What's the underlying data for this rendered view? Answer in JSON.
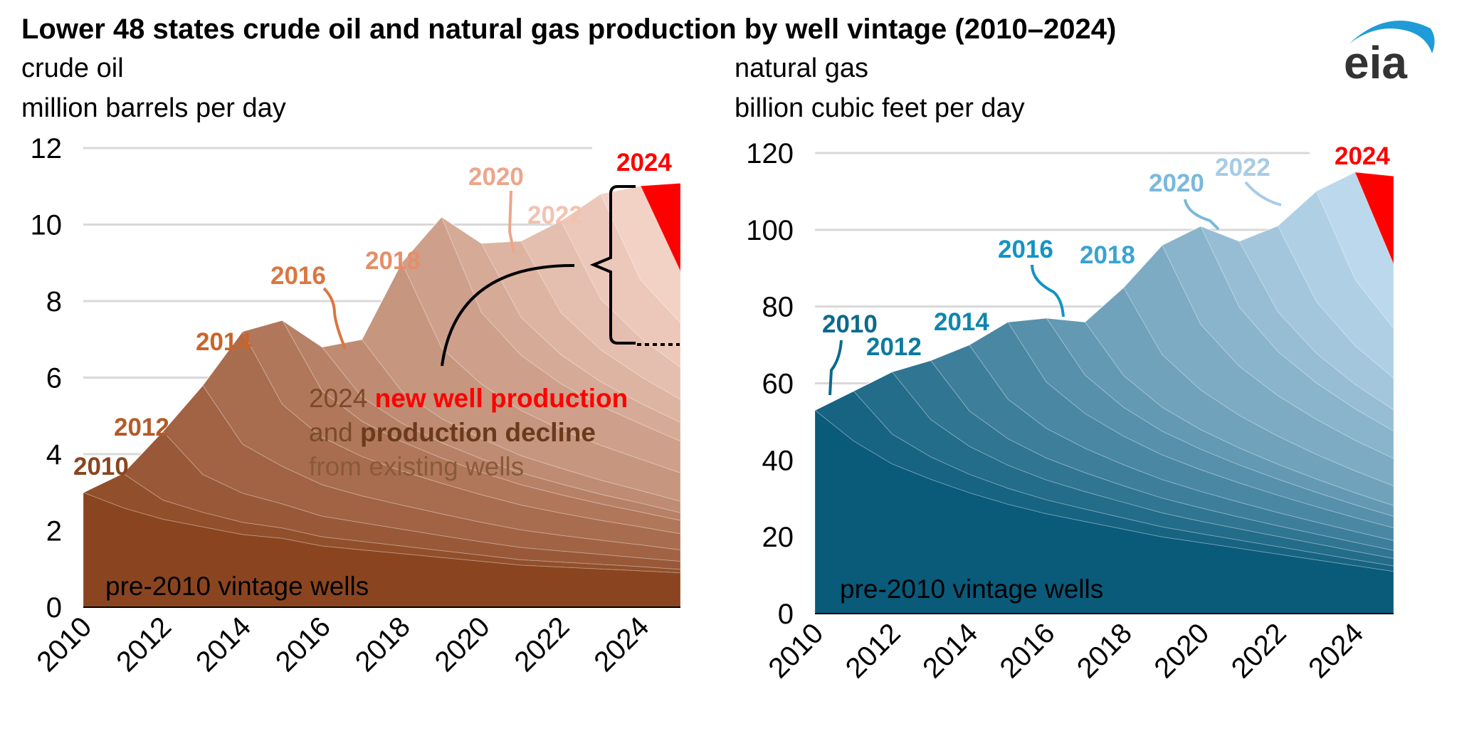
{
  "title": "Lower 48 states crude oil and natural gas production by well vintage (2010–2024)",
  "logo": "eia",
  "annotation": {
    "line1_a": "2024 ",
    "line1_b": "new well production",
    "line2_a": "and ",
    "line2_b": "production decline",
    "line3": "from existing wells"
  },
  "chart_data": [
    {
      "type": "area",
      "stacked": true,
      "title": "crude oil",
      "ylabel": "million barrels per day",
      "ylim": [
        0,
        12
      ],
      "yticks": [
        "0",
        "2",
        "4",
        "6",
        "8",
        "10",
        "12"
      ],
      "xticks": [
        "2010",
        "2012",
        "2014",
        "2016",
        "2018",
        "2020",
        "2022",
        "2024"
      ],
      "xlim": [
        2010,
        2025
      ],
      "grid": true,
      "x": [
        2010,
        2011,
        2012,
        2013,
        2014,
        2015,
        2016,
        2017,
        2018,
        2019,
        2020,
        2021,
        2022,
        2023,
        2024,
        2025
      ],
      "base_label": "pre-2010 vintage wells",
      "color_dark": "#8a4520",
      "color_light": "#f3d2c6",
      "color_2024": "#ff0000",
      "series": [
        {
          "name": "pre-2010 vintage wells",
          "values": [
            3.0,
            2.6,
            2.3,
            2.1,
            1.9,
            1.8,
            1.6,
            1.5,
            1.4,
            1.3,
            1.2,
            1.1,
            1.05,
            1.0,
            0.95,
            0.9
          ]
        },
        {
          "name": "2010",
          "values": [
            0,
            0.9,
            0.5,
            0.38,
            0.32,
            0.27,
            0.24,
            0.22,
            0.2,
            0.18,
            0.16,
            0.14,
            0.13,
            0.12,
            0.11,
            0.09
          ]
        },
        {
          "name": "",
          "values": [
            0,
            0,
            1.8,
            0.99,
            0.76,
            0.63,
            0.54,
            0.49,
            0.44,
            0.39,
            0.35,
            0.32,
            0.29,
            0.26,
            0.23,
            0.21
          ]
        },
        {
          "name": "2012",
          "values": [
            0,
            0,
            0,
            2.33,
            1.28,
            0.98,
            0.82,
            0.7,
            0.63,
            0.57,
            0.51,
            0.46,
            0.41,
            0.37,
            0.34,
            0.3
          ]
        },
        {
          "name": "",
          "values": [
            0,
            0,
            0,
            0,
            2.95,
            1.62,
            1.24,
            1.03,
            0.89,
            0.8,
            0.72,
            0.65,
            0.58,
            0.52,
            0.47,
            0.42
          ]
        },
        {
          "name": "2014",
          "values": [
            0,
            0,
            0,
            0,
            0,
            2.2,
            1.21,
            0.92,
            0.77,
            0.66,
            0.59,
            0.53,
            0.48,
            0.43,
            0.39,
            0.35
          ]
        },
        {
          "name": "",
          "values": [
            0,
            0,
            0,
            0,
            0,
            0,
            1.15,
            0.63,
            0.48,
            0.4,
            0.35,
            0.31,
            0.28,
            0.25,
            0.23,
            0.2
          ]
        },
        {
          "name": "2016",
          "values": [
            0,
            0,
            0,
            0,
            0,
            0,
            0,
            1.51,
            0.83,
            0.63,
            0.53,
            0.45,
            0.41,
            0.37,
            0.33,
            0.3
          ]
        },
        {
          "name": "",
          "values": [
            0,
            0,
            0,
            0,
            0,
            0,
            0,
            0,
            3.37,
            1.85,
            1.42,
            1.18,
            1.01,
            0.91,
            0.82,
            0.74
          ]
        },
        {
          "name": "2018",
          "values": [
            0,
            0,
            0,
            0,
            0,
            0,
            0,
            0,
            0,
            3.42,
            1.88,
            1.44,
            1.2,
            1.03,
            0.92,
            0.83
          ]
        },
        {
          "name": "",
          "values": [
            0,
            0,
            0,
            0,
            0,
            0,
            0,
            0,
            0,
            0,
            1.8,
            0.99,
            0.76,
            0.63,
            0.54,
            0.49
          ]
        },
        {
          "name": "2020",
          "values": [
            0,
            0,
            0,
            0,
            0,
            0,
            0,
            0,
            0,
            0,
            0,
            2.0,
            1.1,
            0.84,
            0.7,
            0.6
          ]
        },
        {
          "name": "",
          "values": [
            0,
            0,
            0,
            0,
            0,
            0,
            0,
            0,
            0,
            0,
            0,
            0,
            2.4,
            1.32,
            1.01,
            0.84
          ]
        },
        {
          "name": "2022",
          "values": [
            0,
            0,
            0,
            0,
            0,
            0,
            0,
            0,
            0,
            0,
            0,
            0,
            0,
            2.75,
            1.51,
            1.16
          ]
        },
        {
          "name": "",
          "values": [
            0,
            0,
            0,
            0,
            0,
            0,
            0,
            0,
            0,
            0,
            0,
            0,
            0,
            0,
            2.46,
            1.35
          ]
        },
        {
          "name": "2024",
          "values": [
            0,
            0,
            0,
            0,
            0,
            0,
            0,
            0,
            0,
            0,
            0,
            0,
            0,
            0,
            0,
            2.3
          ]
        }
      ]
    },
    {
      "type": "area",
      "stacked": true,
      "title": "natural gas",
      "ylabel": "billion cubic feet per day",
      "ylim": [
        0,
        120
      ],
      "yticks": [
        "0",
        "20",
        "40",
        "60",
        "80",
        "100",
        "120"
      ],
      "xticks": [
        "2010",
        "2012",
        "2014",
        "2016",
        "2018",
        "2020",
        "2022",
        "2024"
      ],
      "xlim": [
        2010,
        2025
      ],
      "grid": true,
      "x": [
        2010,
        2011,
        2012,
        2013,
        2014,
        2015,
        2016,
        2017,
        2018,
        2019,
        2020,
        2021,
        2022,
        2023,
        2024,
        2025
      ],
      "base_label": "pre-2010 vintage wells",
      "color_dark": "#0a5a7a",
      "color_light": "#bcd8ec",
      "color_2024": "#ff0000",
      "series": [
        {
          "name": "pre-2010 vintage wells",
          "values": [
            53,
            45,
            39,
            35,
            31.5,
            28.5,
            26,
            24,
            22,
            20,
            18.5,
            17,
            15.5,
            14,
            12.5,
            11
          ]
        },
        {
          "name": "2010",
          "values": [
            0,
            13,
            7.8,
            5.85,
            4.81,
            4.16,
            3.64,
            3.25,
            2.93,
            2.6,
            2.34,
            2.15,
            1.95,
            1.76,
            1.56,
            1.43
          ]
        },
        {
          "name": "",
          "values": [
            0,
            0,
            16.2,
            9.72,
            7.29,
            5.99,
            5.18,
            4.54,
            4.05,
            3.65,
            3.24,
            2.92,
            2.67,
            2.43,
            2.19,
            1.94
          ]
        },
        {
          "name": "2012",
          "values": [
            0,
            0,
            0,
            15.4,
            9.24,
            6.93,
            5.7,
            4.93,
            4.31,
            3.85,
            3.47,
            3.08,
            2.77,
            2.54,
            2.31,
            2.08
          ]
        },
        {
          "name": "",
          "values": [
            0,
            0,
            0,
            0,
            17.2,
            10.32,
            7.74,
            6.36,
            5.5,
            4.82,
            4.3,
            3.87,
            3.44,
            3.1,
            2.84,
            2.58
          ]
        },
        {
          "name": "2014",
          "values": [
            0,
            0,
            0,
            0,
            0,
            20.1,
            12.06,
            9.05,
            7.44,
            6.43,
            5.63,
            5.03,
            4.52,
            4.02,
            3.62,
            3.32
          ]
        },
        {
          "name": "",
          "values": [
            0,
            0,
            0,
            0,
            0,
            0,
            16.7,
            10.02,
            7.52,
            6.18,
            5.34,
            4.68,
            4.18,
            3.76,
            3.34,
            3.01
          ]
        },
        {
          "name": "2016",
          "values": [
            0,
            0,
            0,
            0,
            0,
            0,
            0,
            13.85,
            8.31,
            6.23,
            5.12,
            4.43,
            3.88,
            3.46,
            3.12,
            2.77
          ]
        },
        {
          "name": "",
          "values": [
            0,
            0,
            0,
            0,
            0,
            0,
            0,
            0,
            22.9,
            13.74,
            10.31,
            8.47,
            7.33,
            6.41,
            5.73,
            5.15
          ]
        },
        {
          "name": "2018",
          "values": [
            0,
            0,
            0,
            0,
            0,
            0,
            0,
            0,
            0,
            28.5,
            17.1,
            12.83,
            10.55,
            9.12,
            7.98,
            7.13
          ]
        },
        {
          "name": "",
          "values": [
            0,
            0,
            0,
            0,
            0,
            0,
            0,
            0,
            0,
            0,
            25.6,
            15.36,
            11.52,
            9.47,
            8.19,
            7.17
          ]
        },
        {
          "name": "2020",
          "values": [
            0,
            0,
            0,
            0,
            0,
            0,
            0,
            0,
            0,
            0,
            0,
            17.2,
            10.32,
            7.74,
            6.36,
            5.5
          ]
        },
        {
          "name": "",
          "values": [
            0,
            0,
            0,
            0,
            0,
            0,
            0,
            0,
            0,
            0,
            0,
            0,
            22.4,
            13.44,
            10.08,
            8.29
          ]
        },
        {
          "name": "2022",
          "values": [
            0,
            0,
            0,
            0,
            0,
            0,
            0,
            0,
            0,
            0,
            0,
            0,
            0,
            28.8,
            17.28,
            12.96
          ]
        },
        {
          "name": "",
          "values": [
            0,
            0,
            0,
            0,
            0,
            0,
            0,
            0,
            0,
            0,
            0,
            0,
            0,
            0,
            27.9,
            16.74
          ]
        },
        {
          "name": "2024",
          "values": [
            0,
            0,
            0,
            0,
            0,
            0,
            0,
            0,
            0,
            0,
            0,
            0,
            0,
            0,
            0,
            22.9
          ]
        }
      ]
    }
  ]
}
